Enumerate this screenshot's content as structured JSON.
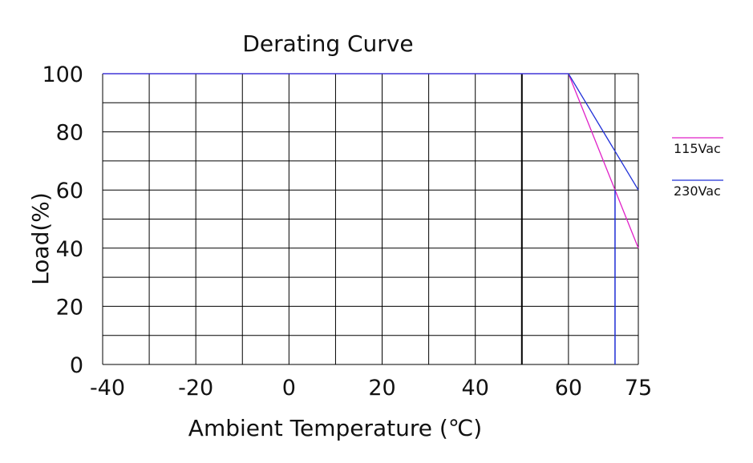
{
  "chart_data": {
    "type": "line",
    "title": "Derating Curve",
    "xlabel": "Ambient Temperature (℃)",
    "ylabel": "Load(%)",
    "x_ticks": [
      -40,
      -20,
      0,
      20,
      40,
      60,
      75
    ],
    "y_ticks": [
      0,
      20,
      40,
      60,
      80,
      100
    ],
    "xlim": [
      -40,
      75
    ],
    "ylim": [
      0,
      100
    ],
    "grid": true,
    "legend_position": "right",
    "series": [
      {
        "name": "115Vac",
        "color": "#e020c8",
        "x": [
          -40,
          60,
          75
        ],
        "y": [
          100,
          100,
          40
        ]
      },
      {
        "name": "230Vac",
        "color": "#2030d8",
        "x": [
          -40,
          60,
          75
        ],
        "y": [
          100,
          100,
          60
        ]
      }
    ],
    "marker_line": {
      "color": "#2030d8",
      "x": 70,
      "y_range": [
        0,
        60
      ]
    },
    "emphasized_gridline_x": 50
  }
}
